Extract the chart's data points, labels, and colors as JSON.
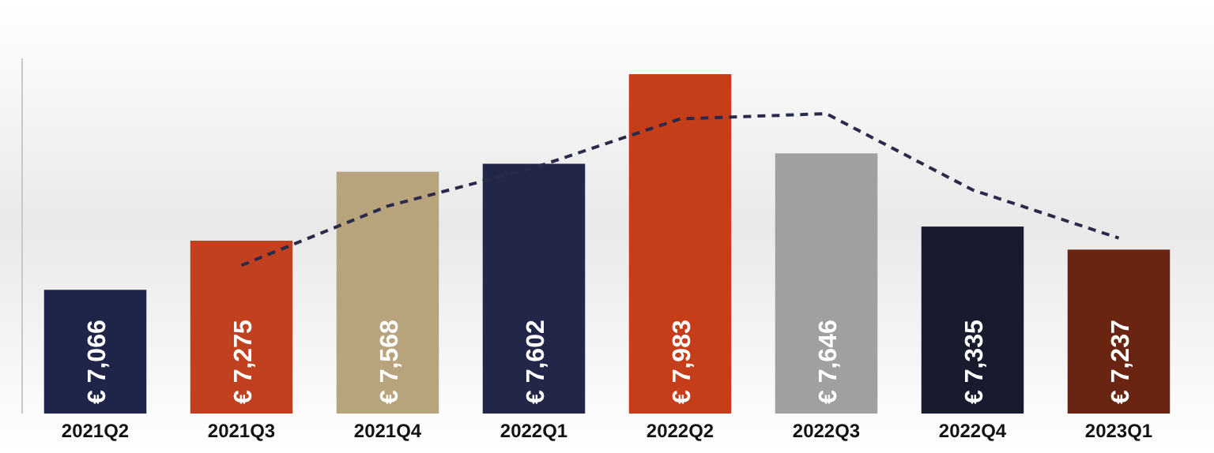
{
  "chart_data": {
    "type": "bar",
    "categories": [
      "2021Q2",
      "2021Q3",
      "2021Q4",
      "2022Q1",
      "2022Q2",
      "2022Q3",
      "2022Q4",
      "2023Q1"
    ],
    "ylim": [
      6540,
      8050
    ],
    "tick_labels": "x",
    "grid": false,
    "series": [
      {
        "colors": [
          "#1f2548",
          "#c0401f",
          "#b8a47c",
          "#222648",
          "#c63d1a",
          "#a0a0a0",
          "#181a2e",
          "#6a2412"
        ],
        "values": [
          7066,
          7275,
          7568,
          7602,
          7983,
          7646,
          7335,
          7237
        ],
        "value_labels": [
          "€ 7,066",
          "€ 7,275",
          "€ 7,568",
          "€ 7,602",
          "€ 7,983",
          "€ 7,646",
          "€ 7,335",
          "€ 7,237"
        ]
      },
      {
        "type": "line",
        "color": "#2a2a4a",
        "line_style": "dashed",
        "marker": "none",
        "values": [
          null,
          7170,
          7422,
          7585,
          7793,
          7815,
          7491,
          7286
        ]
      }
    ]
  }
}
